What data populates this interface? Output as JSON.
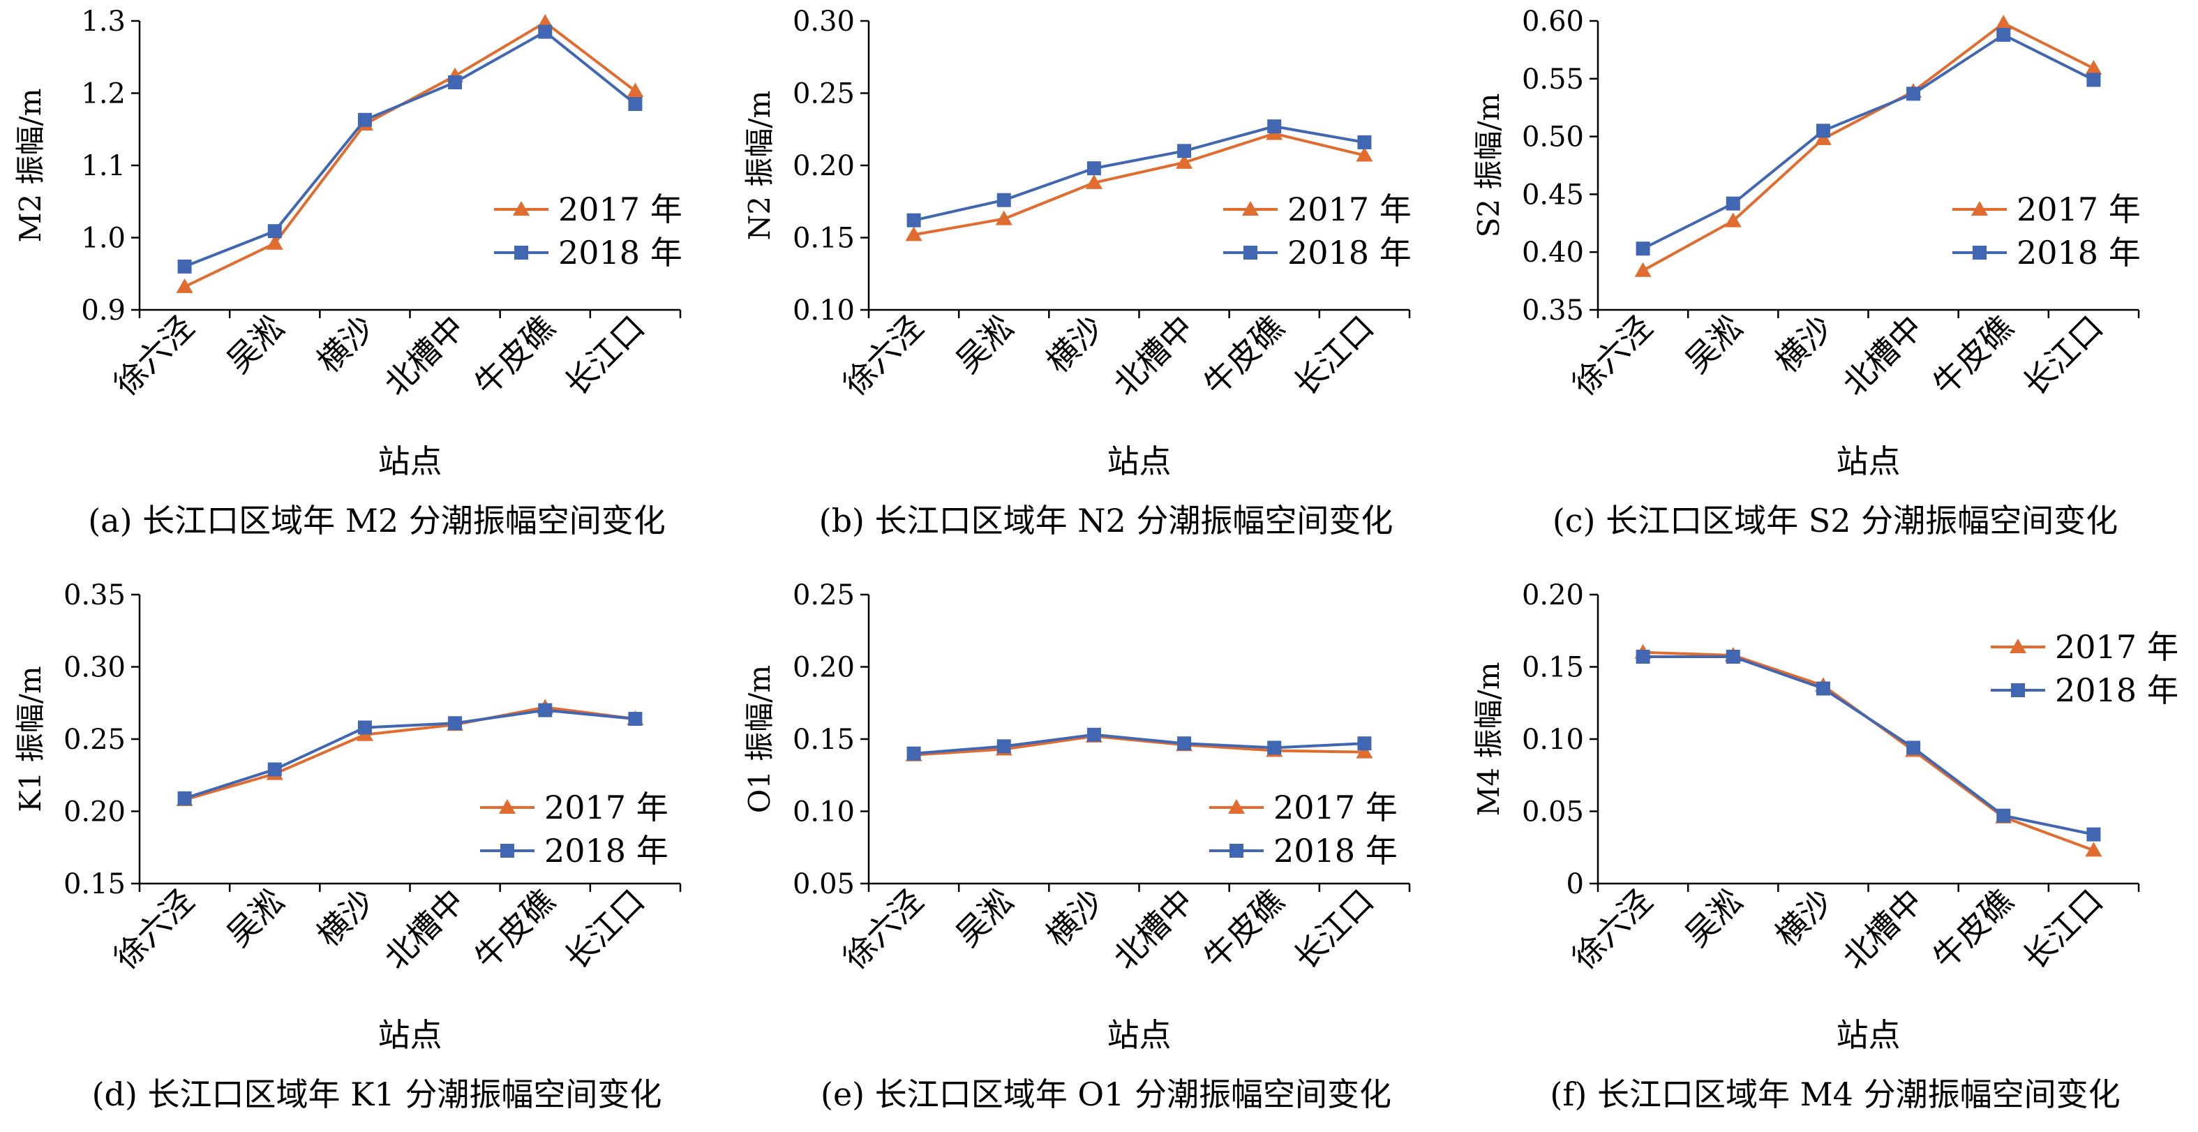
{
  "colors": {
    "s2017": "#E06D2F",
    "s2018": "#4267B2",
    "axis": "#000000"
  },
  "chart_data": [
    {
      "type": "line",
      "categories": [
        "徐六泾",
        "吴淞",
        "横沙",
        "北槽中",
        "牛皮礁",
        "长江口"
      ],
      "series": [
        {
          "name": "2017 年",
          "values": [
            0.932,
            0.992,
            1.157,
            1.224,
            1.298,
            1.203
          ]
        },
        {
          "name": "2018 年",
          "values": [
            0.96,
            1.009,
            1.163,
            1.215,
            1.285,
            1.185
          ]
        }
      ],
      "ylim": [
        0.9,
        1.3
      ],
      "yticks": [
        "0.9",
        "1.0",
        "1.1",
        "1.2",
        "1.3"
      ],
      "ylabel": "M2 振幅/m",
      "xlabel": "站点",
      "caption": "(a) 长江口区域年 M2 分潮振幅空间变化",
      "legend_position": "middle-right"
    },
    {
      "type": "line",
      "categories": [
        "徐六泾",
        "吴淞",
        "横沙",
        "北槽中",
        "牛皮礁",
        "长江口"
      ],
      "series": [
        {
          "name": "2017 年",
          "values": [
            0.152,
            0.163,
            0.188,
            0.202,
            0.222,
            0.207
          ]
        },
        {
          "name": "2018 年",
          "values": [
            0.162,
            0.176,
            0.198,
            0.21,
            0.227,
            0.216
          ]
        }
      ],
      "ylim": [
        0.1,
        0.3
      ],
      "yticks": [
        "0.10",
        "0.15",
        "0.20",
        "0.25",
        "0.30"
      ],
      "ylabel": "N2 振幅/m",
      "xlabel": "站点",
      "caption": "(b) 长江口区域年 N2 分潮振幅空间变化",
      "legend_position": "middle-right"
    },
    {
      "type": "line",
      "categories": [
        "徐六泾",
        "吴淞",
        "横沙",
        "北槽中",
        "牛皮礁",
        "长江口"
      ],
      "series": [
        {
          "name": "2017 年",
          "values": [
            0.384,
            0.427,
            0.498,
            0.539,
            0.598,
            0.559
          ]
        },
        {
          "name": "2018 年",
          "values": [
            0.403,
            0.442,
            0.505,
            0.537,
            0.588,
            0.549
          ]
        }
      ],
      "ylim": [
        0.35,
        0.6
      ],
      "yticks": [
        "0.35",
        "0.40",
        "0.45",
        "0.50",
        "0.55",
        "0.60"
      ],
      "ylabel": "S2 振幅/m",
      "xlabel": "站点",
      "caption": "(c) 长江口区域年 S2 分潮振幅空间变化",
      "legend_position": "middle-right"
    },
    {
      "type": "line",
      "categories": [
        "徐六泾",
        "吴淞",
        "横沙",
        "北槽中",
        "牛皮礁",
        "长江口"
      ],
      "series": [
        {
          "name": "2017 年",
          "values": [
            0.208,
            0.226,
            0.253,
            0.26,
            0.272,
            0.264
          ]
        },
        {
          "name": "2018 年",
          "values": [
            0.209,
            0.229,
            0.258,
            0.261,
            0.27,
            0.264
          ]
        }
      ],
      "ylim": [
        0.15,
        0.35
      ],
      "yticks": [
        "0.15",
        "0.20",
        "0.25",
        "0.30",
        "0.35"
      ],
      "ylabel": "K1 振幅/m",
      "xlabel": "站点",
      "caption": "(d) 长江口区域年 K1 分潮振幅空间变化",
      "legend_position": "bottom-right"
    },
    {
      "type": "line",
      "categories": [
        "徐六泾",
        "吴淞",
        "横沙",
        "北槽中",
        "牛皮礁",
        "长江口"
      ],
      "series": [
        {
          "name": "2017 年",
          "values": [
            0.139,
            0.143,
            0.152,
            0.146,
            0.142,
            0.141
          ]
        },
        {
          "name": "2018 年",
          "values": [
            0.14,
            0.145,
            0.153,
            0.147,
            0.144,
            0.147
          ]
        }
      ],
      "ylim": [
        0.05,
        0.25
      ],
      "yticks": [
        "0.05",
        "0.10",
        "0.15",
        "0.20",
        "0.25"
      ],
      "ylabel": "O1 振幅/m",
      "xlabel": "站点",
      "caption": "(e) 长江口区域年 O1 分潮振幅空间变化",
      "legend_position": "bottom-right"
    },
    {
      "type": "line",
      "categories": [
        "徐六泾",
        "吴淞",
        "横沙",
        "北槽中",
        "牛皮礁",
        "长江口"
      ],
      "series": [
        {
          "name": "2017 年",
          "values": [
            0.16,
            0.158,
            0.137,
            0.092,
            0.046,
            0.023
          ]
        },
        {
          "name": "2018 年",
          "values": [
            0.157,
            0.157,
            0.135,
            0.094,
            0.047,
            0.034
          ]
        }
      ],
      "ylim": [
        0,
        0.2
      ],
      "yticks": [
        "0",
        "0.05",
        "0.10",
        "0.15",
        "0.20"
      ],
      "ylabel": "M4 振幅/m",
      "xlabel": "站点",
      "caption": "(f) 长江口区域年 M4 分潮振幅空间变化",
      "legend_position": "top-right"
    }
  ]
}
